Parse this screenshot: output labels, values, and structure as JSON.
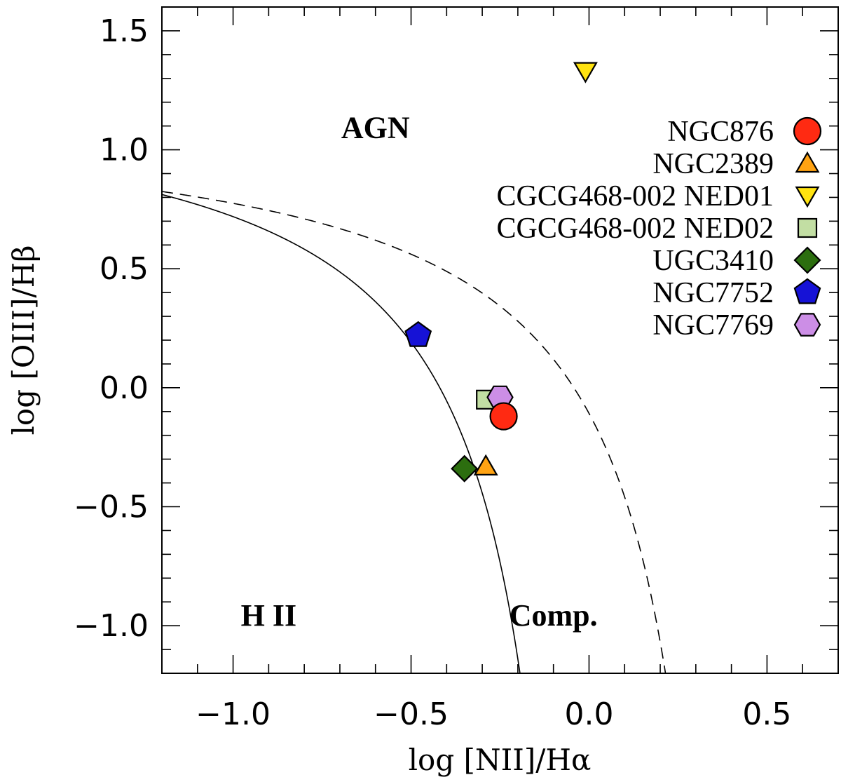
{
  "chart_data": {
    "type": "scatter",
    "xlabel": "log [NII]/Hα",
    "ylabel": "log [OIII]/Hβ",
    "xlim": [
      -1.2,
      0.7
    ],
    "ylim": [
      -1.2,
      1.6
    ],
    "xticks": [
      -1.0,
      -0.5,
      0.0,
      0.5
    ],
    "xtick_labels": [
      "−1.0",
      "−0.5",
      "0.0",
      "0.5"
    ],
    "yticks": [
      -1.0,
      -0.5,
      0.0,
      0.5,
      1.0,
      1.5
    ],
    "ytick_labels": [
      "−1.0",
      "−0.5",
      "0.0",
      "0.5",
      "1.0",
      "1.5"
    ],
    "grid": false,
    "legend_position": "top-right",
    "regions": [
      {
        "label": "AGN",
        "x": -0.6,
        "y": 1.05
      },
      {
        "label": "H II",
        "x": -0.9,
        "y": -1.0
      },
      {
        "label": "Comp.",
        "x": -0.1,
        "y": -1.0
      }
    ],
    "curves": [
      {
        "style": "solid",
        "relation": "y = 0.61 / (x - 0.05) + 1.30"
      },
      {
        "style": "dashed",
        "relation": "y = 0.61 / (x - 0.47) + 1.19"
      }
    ],
    "series": [
      {
        "name": "NGC876",
        "marker": "circle",
        "color": "#ff2a12",
        "x": -0.24,
        "y": -0.12
      },
      {
        "name": "NGC2389",
        "marker": "triangle-up",
        "color": "#ffa313",
        "x": -0.29,
        "y": -0.33
      },
      {
        "name": "CGCG468-002 NED01",
        "marker": "triangle-down",
        "color": "#ffe310",
        "x": -0.01,
        "y": 1.33
      },
      {
        "name": "CGCG468-002 NED02",
        "marker": "square",
        "color": "#c2dea3",
        "x": -0.29,
        "y": -0.05
      },
      {
        "name": "UGC3410",
        "marker": "diamond",
        "color": "#2c6e0f",
        "x": -0.35,
        "y": -0.34
      },
      {
        "name": "NGC7752",
        "marker": "pentagon",
        "color": "#1612d6",
        "x": -0.48,
        "y": 0.22
      },
      {
        "name": "NGC7769",
        "marker": "hexagon",
        "color": "#cc8ee6",
        "x": -0.25,
        "y": -0.04
      }
    ]
  }
}
